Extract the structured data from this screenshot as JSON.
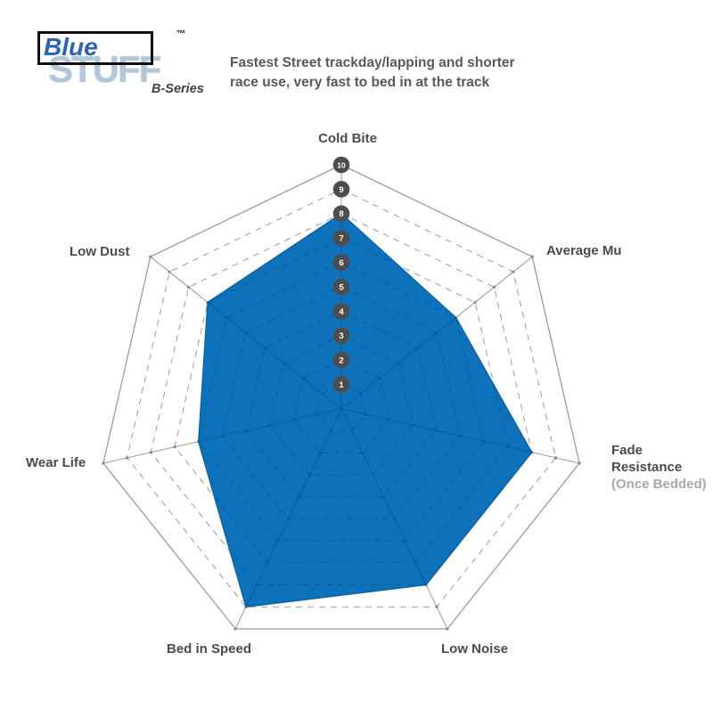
{
  "header": {
    "logo": {
      "word1": "Blue",
      "word2": "STUFF",
      "trademark": "™",
      "series": "B-Series"
    },
    "description_line1": "Fastest Street trackday/lapping and shorter",
    "description_line2": "race use, very fast to bed in at the track"
  },
  "axis_labels": {
    "cold_bite": "Cold Bite",
    "average_mu": "Average Mu",
    "fade_line1": "Fade",
    "fade_line2": "Resistance",
    "fade_note": "(Once Bedded)",
    "low_noise": "Low Noise",
    "bed_in_speed": "Bed in Speed",
    "wear_life": "Wear Life",
    "low_dust": "Low Dust"
  },
  "chart_data": {
    "type": "radar",
    "title": "EBC BlueStuff B-Series brake pad performance",
    "categories": [
      "Cold Bite",
      "Average Mu",
      "Fade Resistance (Once Bedded)",
      "Low Noise",
      "Bed in Speed",
      "Wear Life",
      "Low Dust"
    ],
    "series": [
      {
        "name": "BlueStuff B-Series",
        "values": [
          8,
          6,
          8,
          8,
          9,
          6,
          7
        ]
      }
    ],
    "scale": {
      "min": 1,
      "max": 10,
      "ticks": [
        10,
        9,
        8,
        7,
        6,
        5,
        4,
        3,
        2,
        1
      ]
    },
    "grid": {
      "outer_ring": "solid",
      "inner_rings": "dashed",
      "spokes": "solid"
    },
    "legend": "none",
    "colors": {
      "fill": "#0e72ba",
      "fill_edge": "#0b62a4",
      "grid": "#9b9b9b",
      "grid_dot": "#8a8a8a",
      "grid_inner": "#0a5c99",
      "marker": "#4d4d4d",
      "marker_text": "#ffffff",
      "label_text": "#4a4b4d",
      "note_text": "#a7a9ac",
      "brand_blue": "#2a65b4",
      "brand_light": "#b3c6da"
    }
  }
}
